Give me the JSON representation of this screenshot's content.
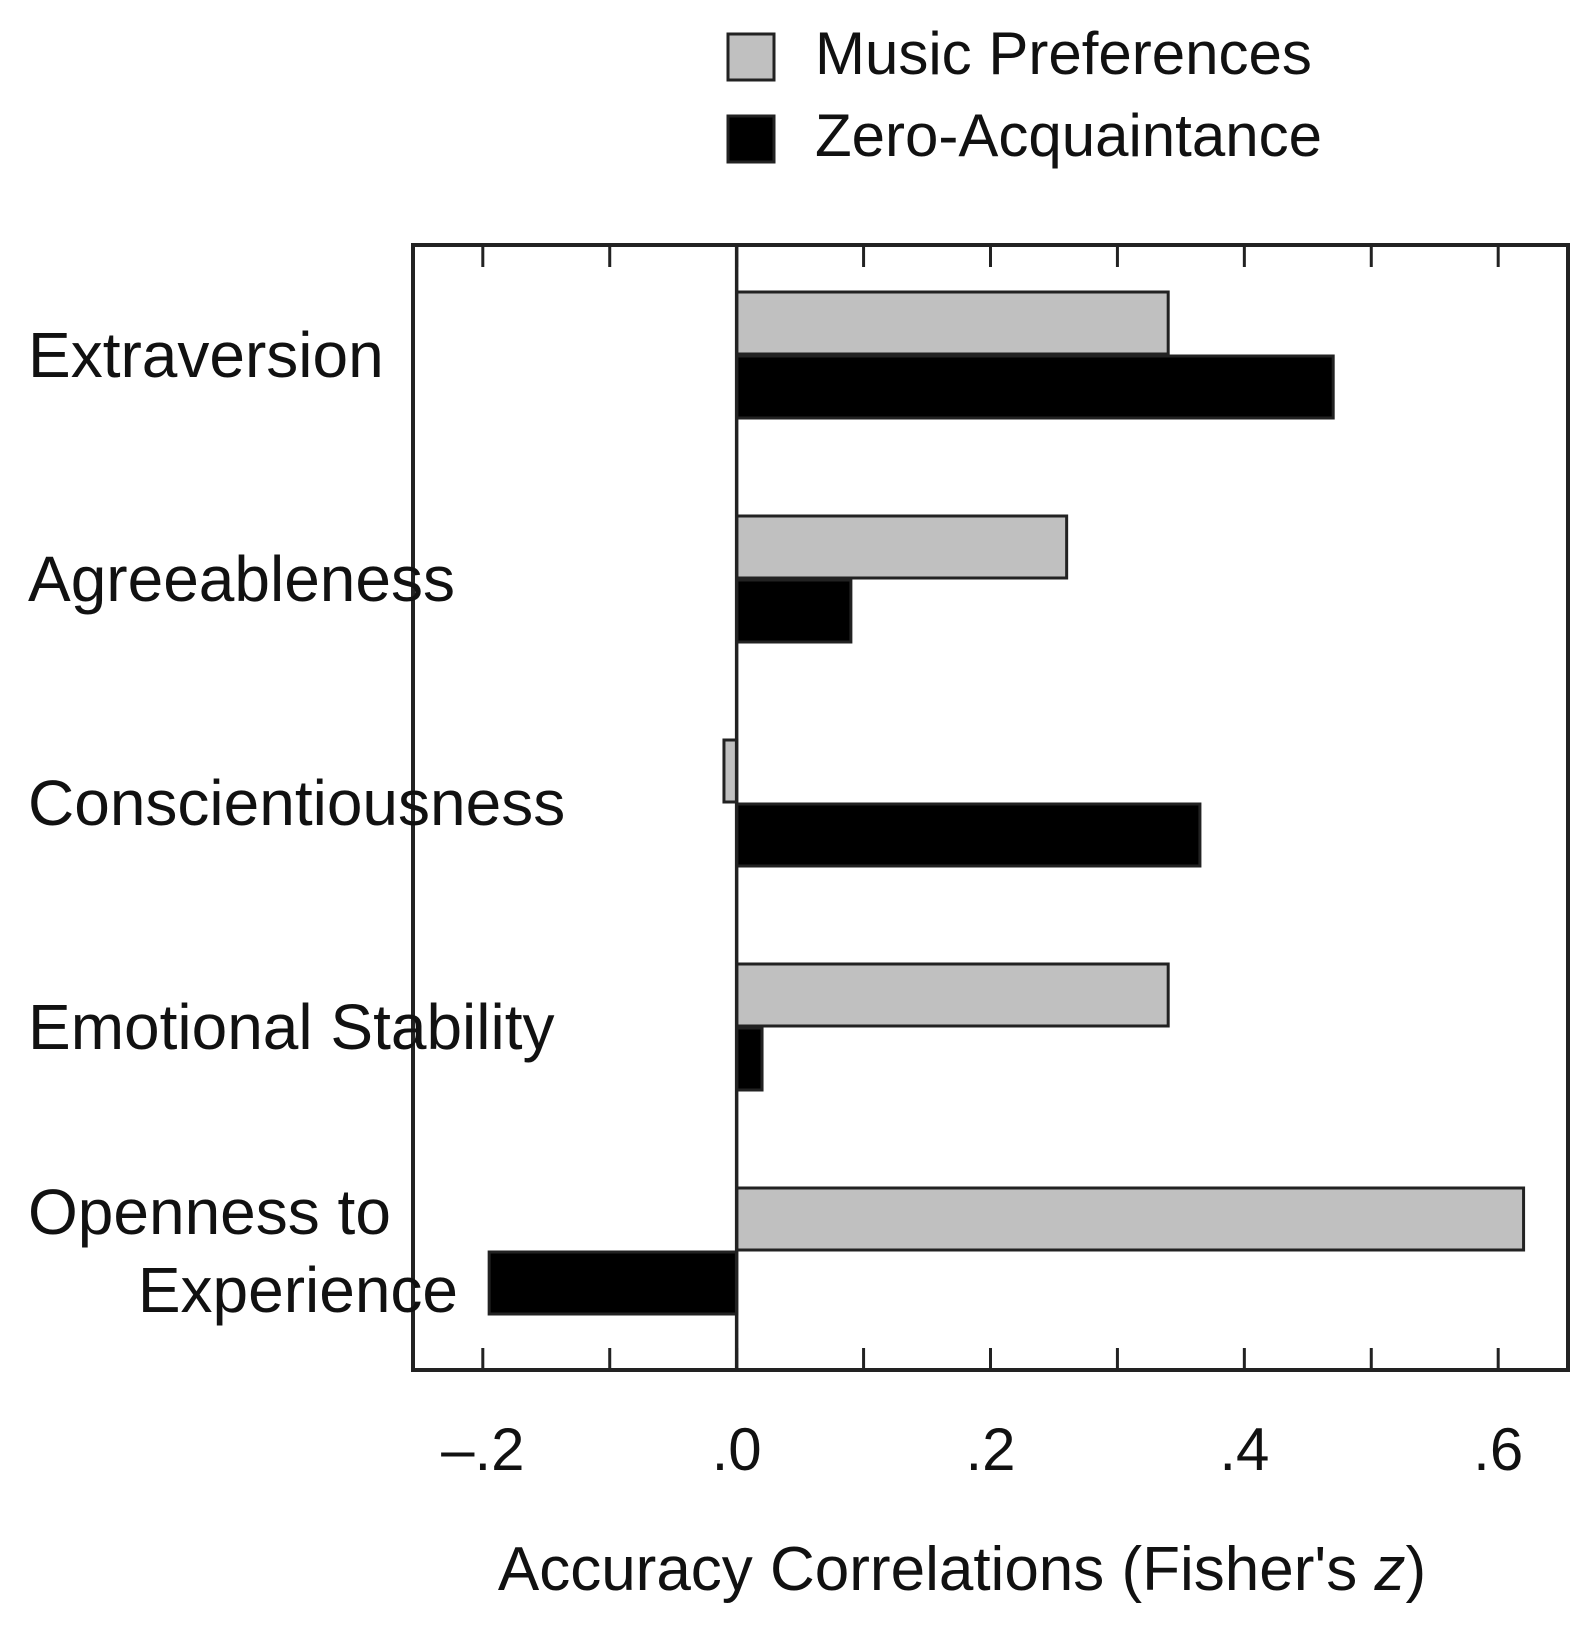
{
  "chart_data": {
    "type": "bar",
    "orientation": "horizontal",
    "categories": [
      [
        "Extraversion"
      ],
      [
        "Agreeableness"
      ],
      [
        "Conscientiousness"
      ],
      [
        "Emotional Stability"
      ],
      [
        "Openness to",
        "Experience"
      ]
    ],
    "series": [
      {
        "name": "Music Preferences",
        "color": "#c0c0c0",
        "values": [
          0.34,
          0.26,
          -0.01,
          0.34,
          0.62
        ]
      },
      {
        "name": "Zero-Acquaintance",
        "color": "#000000",
        "values": [
          0.47,
          0.09,
          0.365,
          0.02,
          -0.195
        ]
      }
    ],
    "xlim": [
      -0.255,
      0.655
    ],
    "major_ticks": [
      -0.2,
      0.0,
      0.2,
      0.4,
      0.6
    ],
    "tick_labels": [
      "–.2",
      ".0",
      ".2",
      ".4",
      ".6"
    ],
    "minor_ticks": [
      -0.1,
      0.1,
      0.3,
      0.5
    ],
    "xlabel": "Accuracy Correlations (Fisher's z)",
    "ylabel": "",
    "title": "",
    "legend_position": "top-right",
    "grid": false
  }
}
